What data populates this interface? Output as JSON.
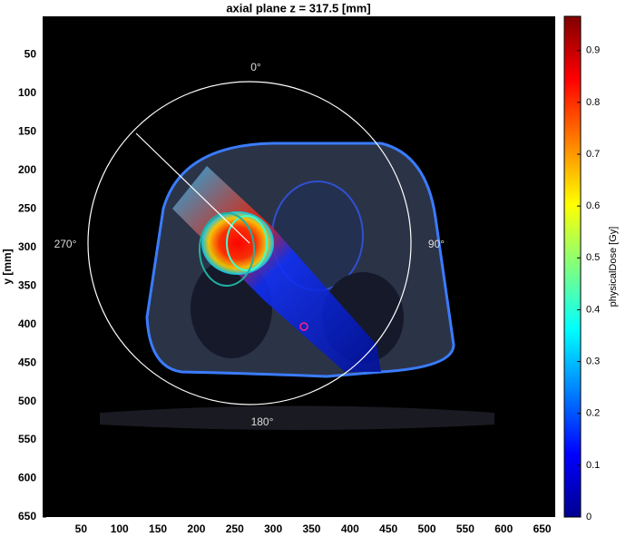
{
  "chart_data": {
    "type": "dose-map",
    "title": "axial plane z = 317.5 [mm]",
    "y_label": "y [mm]",
    "colorbar_label": "physicalDose [Gy]",
    "xlim": [
      0,
      667
    ],
    "ylim": [
      0,
      650
    ],
    "xticks": [
      50,
      100,
      150,
      200,
      250,
      300,
      350,
      400,
      450,
      500,
      550,
      600,
      650
    ],
    "yticks": [
      50,
      100,
      150,
      200,
      250,
      300,
      350,
      400,
      450,
      500,
      550,
      600,
      650
    ],
    "clim": [
      0,
      0.966
    ],
    "cticks": [
      0,
      0.1,
      0.2,
      0.3,
      0.4,
      0.5,
      0.6,
      0.7,
      0.8,
      0.9
    ],
    "annotations": [
      "0°",
      "90°",
      "180°",
      "270°"
    ]
  }
}
